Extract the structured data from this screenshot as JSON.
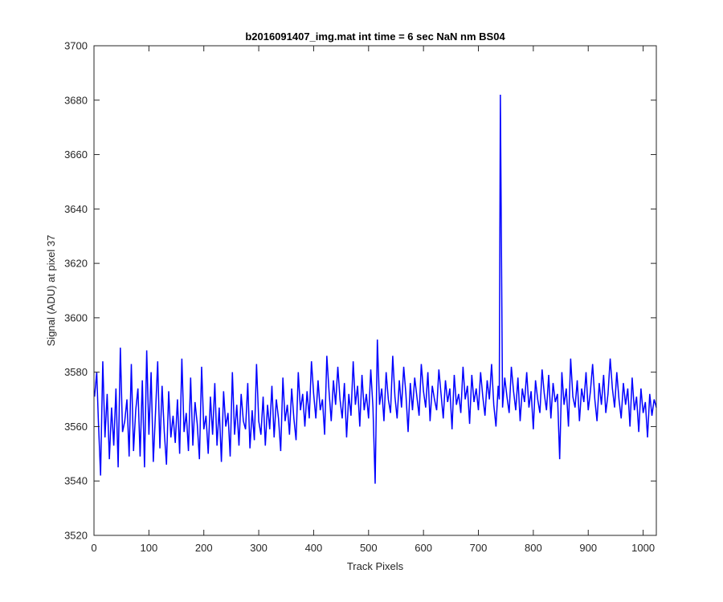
{
  "chart_data": {
    "type": "line",
    "title": "b2016091407_img.mat int time = 6 sec  NaN nm BS04",
    "xlabel": "Track Pixels",
    "ylabel": "Signal (ADU) at pixel 37",
    "xlim": [
      0,
      1024
    ],
    "ylim": [
      3520,
      3700
    ],
    "xticks": [
      0,
      100,
      200,
      300,
      400,
      500,
      600,
      700,
      800,
      900,
      1000
    ],
    "yticks": [
      3520,
      3540,
      3560,
      3580,
      3600,
      3620,
      3640,
      3660,
      3680,
      3700
    ],
    "grid": false,
    "legend": "none",
    "series": [
      {
        "color": "#0000ff",
        "note": "noisy signal; values sampled every 8 pixels plus notable spikes",
        "x": [
          1,
          5,
          8,
          12,
          16,
          20,
          24,
          28,
          32,
          36,
          40,
          44,
          48,
          52,
          56,
          60,
          64,
          68,
          72,
          76,
          80,
          84,
          88,
          92,
          96,
          100,
          104,
          108,
          112,
          116,
          120,
          124,
          128,
          132,
          136,
          140,
          144,
          148,
          152,
          156,
          160,
          164,
          168,
          172,
          176,
          180,
          184,
          188,
          192,
          196,
          200,
          204,
          208,
          212,
          216,
          220,
          224,
          228,
          232,
          236,
          240,
          244,
          248,
          252,
          256,
          260,
          264,
          268,
          272,
          276,
          280,
          284,
          288,
          292,
          296,
          300,
          304,
          308,
          312,
          316,
          320,
          324,
          328,
          332,
          336,
          340,
          344,
          348,
          352,
          356,
          360,
          364,
          368,
          372,
          376,
          380,
          384,
          388,
          392,
          396,
          400,
          404,
          408,
          412,
          416,
          420,
          424,
          428,
          432,
          436,
          440,
          444,
          448,
          452,
          456,
          460,
          464,
          468,
          472,
          476,
          480,
          484,
          488,
          492,
          496,
          500,
          504,
          508,
          512,
          516,
          520,
          524,
          528,
          532,
          536,
          540,
          544,
          548,
          552,
          556,
          560,
          564,
          568,
          572,
          576,
          580,
          584,
          588,
          592,
          596,
          600,
          604,
          608,
          612,
          616,
          620,
          624,
          628,
          632,
          636,
          640,
          644,
          648,
          652,
          656,
          660,
          664,
          668,
          672,
          676,
          680,
          684,
          688,
          692,
          696,
          700,
          704,
          708,
          712,
          716,
          720,
          724,
          728,
          732,
          736,
          738,
          740,
          744,
          748,
          752,
          756,
          760,
          764,
          768,
          772,
          776,
          780,
          784,
          788,
          792,
          796,
          800,
          804,
          808,
          812,
          816,
          820,
          824,
          828,
          832,
          836,
          840,
          844,
          848,
          852,
          856,
          860,
          864,
          868,
          872,
          876,
          880,
          884,
          888,
          892,
          896,
          900,
          904,
          908,
          912,
          916,
          920,
          924,
          928,
          932,
          936,
          940,
          944,
          948,
          952,
          956,
          960,
          964,
          968,
          972,
          976,
          980,
          984,
          988,
          992,
          996,
          1000,
          1004,
          1008,
          1012,
          1016,
          1020,
          1024
        ],
        "y": [
          3571,
          3580,
          3562,
          3542,
          3584,
          3556,
          3572,
          3548,
          3567,
          3553,
          3574,
          3545,
          3589,
          3558,
          3562,
          3570,
          3549,
          3583,
          3551,
          3566,
          3574,
          3549,
          3577,
          3545,
          3588,
          3557,
          3580,
          3547,
          3565,
          3584,
          3552,
          3575,
          3558,
          3546,
          3573,
          3556,
          3564,
          3554,
          3570,
          3550,
          3585,
          3558,
          3565,
          3551,
          3578,
          3553,
          3569,
          3561,
          3548,
          3582,
          3559,
          3564,
          3550,
          3571,
          3557,
          3576,
          3553,
          3567,
          3547,
          3573,
          3560,
          3565,
          3549,
          3580,
          3557,
          3568,
          3553,
          3572,
          3562,
          3559,
          3576,
          3552,
          3566,
          3555,
          3583,
          3562,
          3557,
          3571,
          3553,
          3568,
          3559,
          3575,
          3556,
          3570,
          3563,
          3551,
          3578,
          3562,
          3568,
          3557,
          3574,
          3563,
          3555,
          3580,
          3566,
          3572,
          3560,
          3573,
          3563,
          3584,
          3572,
          3563,
          3577,
          3566,
          3570,
          3557,
          3586,
          3573,
          3562,
          3577,
          3568,
          3582,
          3570,
          3563,
          3576,
          3556,
          3572,
          3564,
          3584,
          3568,
          3575,
          3560,
          3579,
          3566,
          3572,
          3563,
          3581,
          3567,
          3539,
          3592,
          3568,
          3574,
          3562,
          3580,
          3570,
          3565,
          3586,
          3571,
          3563,
          3577,
          3567,
          3582,
          3572,
          3558,
          3576,
          3566,
          3578,
          3571,
          3564,
          3583,
          3573,
          3567,
          3580,
          3562,
          3575,
          3570,
          3566,
          3581,
          3572,
          3563,
          3577,
          3569,
          3574,
          3559,
          3579,
          3568,
          3572,
          3565,
          3582,
          3570,
          3575,
          3561,
          3579,
          3569,
          3574,
          3566,
          3580,
          3571,
          3564,
          3577,
          3570,
          3583,
          3568,
          3560,
          3575,
          3570,
          3682,
          3567,
          3578,
          3571,
          3565,
          3582,
          3573,
          3566,
          3578,
          3562,
          3574,
          3569,
          3580,
          3567,
          3573,
          3559,
          3577,
          3570,
          3565,
          3581,
          3572,
          3566,
          3579,
          3563,
          3576,
          3569,
          3572,
          3548,
          3580,
          3568,
          3574,
          3560,
          3585,
          3571,
          3567,
          3577,
          3562,
          3574,
          3569,
          3580,
          3566,
          3573,
          3583,
          3570,
          3562,
          3576,
          3568,
          3579,
          3565,
          3572,
          3585,
          3574,
          3567,
          3580,
          3570,
          3563,
          3576,
          3568,
          3574,
          3560,
          3578,
          3566,
          3571,
          3558,
          3574,
          3565,
          3569,
          3556,
          3572,
          3564,
          3570,
          3567
        ]
      }
    ]
  }
}
